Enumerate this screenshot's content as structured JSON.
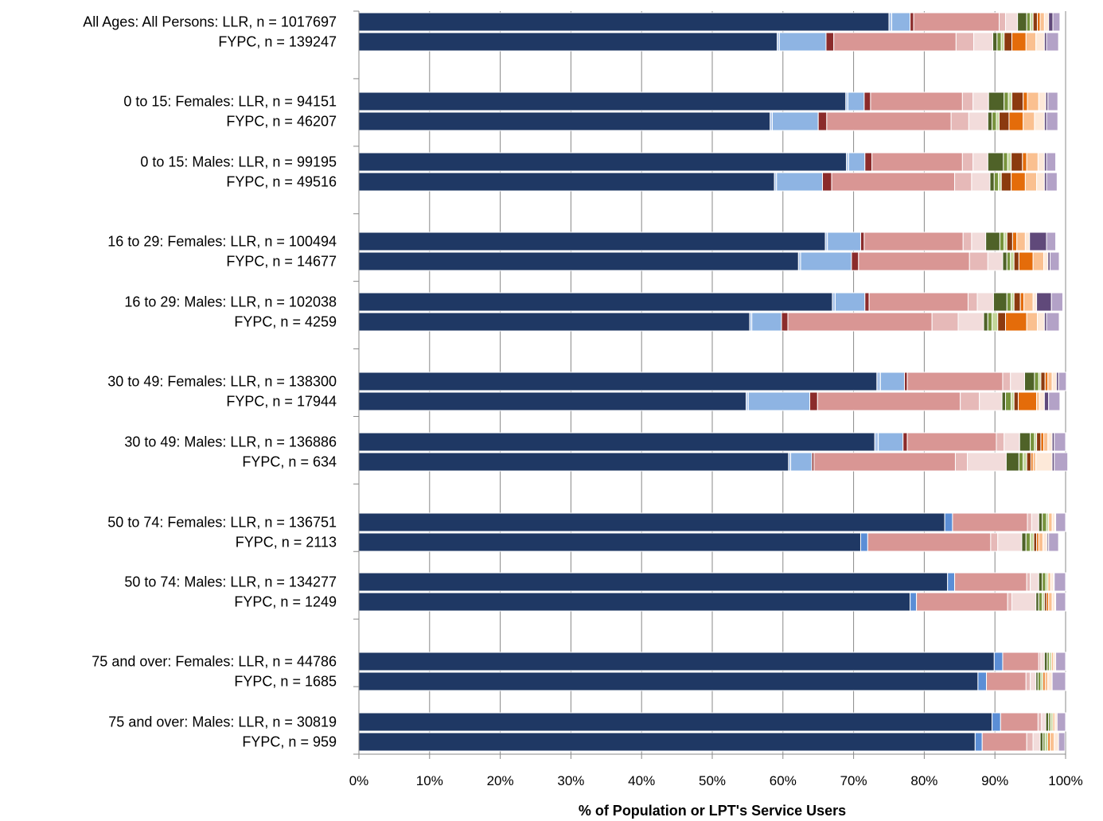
{
  "chart_data": {
    "type": "bar",
    "orientation": "horizontal",
    "stacked": true,
    "percent": true,
    "xlabel": "% of Population or LPT's Service Users",
    "xlim": [
      0,
      100
    ],
    "x_ticks": [
      "0%",
      "10%",
      "20%",
      "30%",
      "40%",
      "50%",
      "60%",
      "70%",
      "80%",
      "90%",
      "100%"
    ],
    "grid": "vertical",
    "legend": "none",
    "groups": [
      {
        "labels": [
          "All Ages: All Persons: LLR, n = 1017697",
          "FYPC, n = 139247"
        ]
      },
      {
        "labels": [
          "0 to 15: Females: LLR, n = 94151",
          "FYPC, n = 46207"
        ]
      },
      {
        "labels": [
          "0 to 15: Males: LLR, n = 99195",
          "FYPC, n = 49516"
        ]
      },
      {
        "labels": [
          "16 to 29: Females: LLR, n = 100494",
          "FYPC, n = 14677"
        ]
      },
      {
        "labels": [
          "16 to 29: Males: LLR, n = 102038",
          "FYPC, n = 4259"
        ]
      },
      {
        "labels": [
          "30 to 49: Females: LLR, n = 138300",
          "FYPC, n = 17944"
        ]
      },
      {
        "labels": [
          "30 to 49: Males: LLR, n = 136886",
          "FYPC, n = 634"
        ]
      },
      {
        "labels": [
          "50 to 74: Females: LLR, n = 136751",
          "FYPC, n = 2113"
        ]
      },
      {
        "labels": [
          "50 to 74: Males: LLR, n = 134277",
          "FYPC, n = 1249"
        ]
      },
      {
        "labels": [
          "75 and over: Females: LLR, n = 44786",
          "FYPC, n = 1685"
        ]
      },
      {
        "labels": [
          "75 and over: Males: LLR, n = 30819",
          "FYPC, n = 959"
        ]
      }
    ],
    "series_colors": [
      "#1f3864",
      "#a9c4eb",
      "#8eb4e3",
      "#5b8ed6",
      "#8b2b2b",
      "#d99694",
      "#e6b9b8",
      "#f2dcdb",
      "#4f6228",
      "#77933c",
      "#c3d69b",
      "#8b3a0f",
      "#e46c0a",
      "#fac090",
      "#fde9d9",
      "#60497a",
      "#b3a2c7"
    ],
    "bars": [
      [
        75.0,
        0.4,
        2.6,
        0,
        0.5,
        12.1,
        0.9,
        1.7,
        1.3,
        0.5,
        0.4,
        0.6,
        0.4,
        0.6,
        0.6,
        0.6,
        1.0
      ],
      [
        59.2,
        0.3,
        6.6,
        0,
        1.1,
        17.3,
        2.5,
        2.7,
        0.6,
        0.6,
        0.4,
        1.1,
        2.0,
        1.4,
        1.2,
        0.3,
        1.7
      ],
      [
        68.9,
        0.3,
        2.3,
        0,
        0.9,
        13.0,
        1.5,
        2.2,
        2.2,
        0.6,
        0.5,
        1.6,
        0.6,
        1.6,
        1.0,
        0.3,
        1.4
      ],
      [
        58.2,
        0.3,
        6.5,
        0,
        1.2,
        17.6,
        2.5,
        2.7,
        0.6,
        0.6,
        0.4,
        1.4,
        2.0,
        1.6,
        1.4,
        0.3,
        1.6
      ],
      [
        69.0,
        0.3,
        2.3,
        0,
        1.0,
        12.8,
        1.5,
        2.1,
        2.2,
        0.6,
        0.5,
        1.6,
        0.6,
        1.6,
        0.9,
        0.3,
        1.3
      ],
      [
        58.8,
        0.3,
        6.5,
        0,
        1.3,
        17.4,
        2.4,
        2.6,
        0.6,
        0.6,
        0.4,
        1.4,
        2.0,
        1.6,
        1.1,
        0.3,
        1.5
      ],
      [
        66.0,
        0.3,
        4.7,
        0,
        0.5,
        14.0,
        1.2,
        2.0,
        2.0,
        0.6,
        0.4,
        0.8,
        0.6,
        1.2,
        0.6,
        2.4,
        1.3
      ],
      [
        62.2,
        0.3,
        7.2,
        0,
        1.0,
        15.7,
        2.6,
        2.1,
        0.6,
        0.5,
        0.5,
        0.7,
        2.0,
        1.5,
        0.6,
        0.3,
        1.3
      ],
      [
        67.0,
        0.4,
        4.2,
        0,
        0.6,
        14.0,
        1.3,
        2.3,
        1.9,
        0.6,
        0.4,
        0.9,
        0.5,
        1.3,
        0.5,
        2.1,
        1.6
      ],
      [
        55.3,
        0.3,
        4.2,
        0,
        0.9,
        20.4,
        3.7,
        3.6,
        0.6,
        0.6,
        0.8,
        1.1,
        3.0,
        1.5,
        1.0,
        0.3,
        1.8
      ],
      [
        73.3,
        0.5,
        3.4,
        0,
        0.4,
        13.5,
        1.1,
        2.0,
        1.4,
        0.6,
        0.3,
        0.6,
        0.4,
        0.6,
        0.6,
        0.3,
        1.1
      ],
      [
        54.8,
        0.3,
        8.7,
        0,
        1.1,
        20.2,
        2.7,
        3.2,
        0.5,
        0.8,
        0.4,
        0.6,
        2.6,
        0.4,
        0.7,
        0.6,
        1.6
      ],
      [
        73.0,
        0.5,
        3.5,
        0,
        0.6,
        12.6,
        1.1,
        2.2,
        1.5,
        0.6,
        0.3,
        0.6,
        0.4,
        0.6,
        0.6,
        0.3,
        1.6
      ],
      [
        60.8,
        0.3,
        3.0,
        0,
        0.3,
        20.0,
        1.7,
        5.5,
        1.8,
        0.6,
        0.5,
        0.6,
        0.3,
        0.4,
        2.3,
        0.3,
        1.9
      ],
      [
        82.9,
        0,
        0,
        1.1,
        0,
        10.6,
        0.6,
        1.0,
        0.5,
        0.6,
        0.3,
        0,
        0,
        0.5,
        0.4,
        0.1,
        1.4
      ],
      [
        71.0,
        0,
        0,
        1.0,
        0,
        17.4,
        1.0,
        3.4,
        0.6,
        0.6,
        0.5,
        0.4,
        0.3,
        0.6,
        0.6,
        0.2,
        1.4
      ],
      [
        83.3,
        0,
        0,
        1.0,
        0,
        10.2,
        0.5,
        1.2,
        0.5,
        0.5,
        0.3,
        0,
        0,
        0.4,
        0.4,
        0.1,
        1.6
      ],
      [
        78.0,
        0,
        0,
        0.9,
        0,
        12.9,
        0.6,
        3.4,
        0.4,
        0.5,
        0.3,
        0.3,
        0.3,
        0.5,
        0.4,
        0.1,
        1.4
      ],
      [
        89.9,
        0,
        0,
        1.2,
        0,
        5.1,
        0.3,
        0.5,
        0.4,
        0.3,
        0.3,
        0,
        0,
        0.3,
        0.3,
        0,
        1.4
      ],
      [
        87.6,
        0,
        0,
        1.2,
        0,
        5.6,
        0.6,
        0.8,
        0.3,
        0.4,
        0.3,
        0,
        0.3,
        0.4,
        0.6,
        0,
        1.9
      ],
      [
        89.6,
        0,
        0,
        1.2,
        0,
        5.3,
        0.5,
        0.6,
        0.4,
        0.3,
        0.3,
        0,
        0,
        0.3,
        0.3,
        0,
        1.2
      ],
      [
        87.2,
        0,
        0,
        1.0,
        0,
        6.3,
        0.9,
        1.0,
        0.4,
        0.3,
        0.4,
        0,
        0.3,
        0.6,
        0.6,
        0,
        0.9
      ]
    ]
  }
}
